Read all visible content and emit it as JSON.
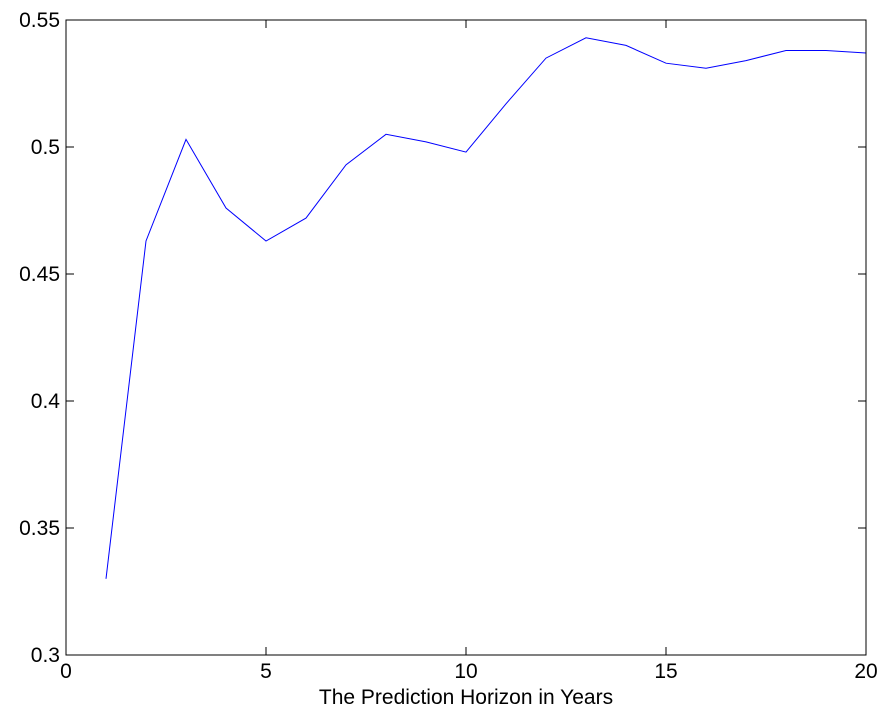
{
  "chart_data": {
    "type": "line",
    "title": "",
    "xlabel": "The Prediction Horizon in Years",
    "ylabel": "",
    "xlim": [
      0,
      20
    ],
    "ylim": [
      0.3,
      0.55
    ],
    "xticks": [
      0,
      5,
      10,
      15,
      20
    ],
    "yticks": [
      0.3,
      0.35,
      0.4,
      0.45,
      0.5,
      0.55
    ],
    "xtick_labels": [
      "0",
      "5",
      "10",
      "15",
      "20"
    ],
    "ytick_labels": [
      "0.3",
      "0.35",
      "0.4",
      "0.45",
      "0.5",
      "0.55"
    ],
    "grid": false,
    "series": [
      {
        "color": "#0000ff",
        "x": [
          1,
          2,
          3,
          4,
          5,
          6,
          7,
          8,
          9,
          10,
          11,
          12,
          13,
          14,
          15,
          16,
          17,
          18,
          19,
          20
        ],
        "y": [
          0.33,
          0.463,
          0.503,
          0.476,
          0.463,
          0.472,
          0.493,
          0.505,
          0.502,
          0.498,
          0.517,
          0.535,
          0.543,
          0.54,
          0.533,
          0.531,
          0.534,
          0.538,
          0.538,
          0.537
        ]
      }
    ]
  }
}
